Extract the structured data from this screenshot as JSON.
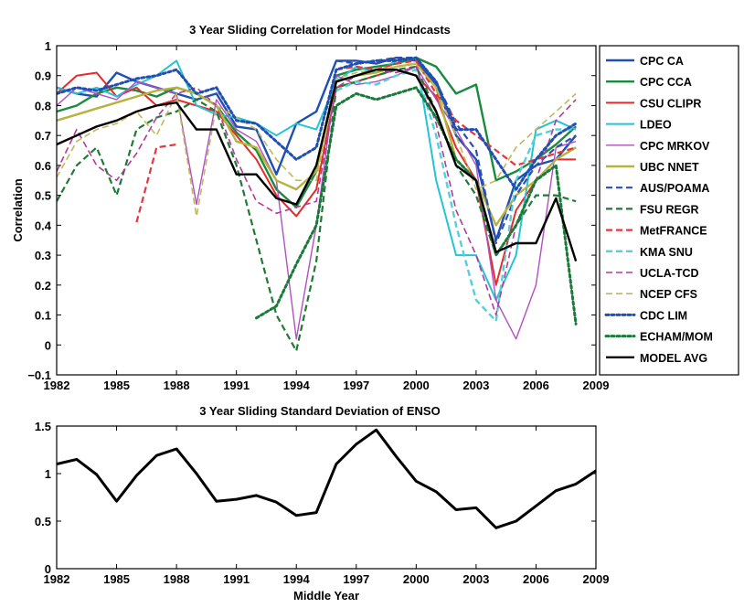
{
  "chart_data": [
    {
      "type": "line",
      "title": "3 Year Sliding Correlation for Model Hindcasts",
      "xlabel": "",
      "ylabel": "Correlation",
      "xlim": [
        1982,
        2009
      ],
      "ylim": [
        -0.1,
        1
      ],
      "xticks": [
        1982,
        1985,
        1988,
        1991,
        1994,
        1997,
        2000,
        2003,
        2006,
        2009
      ],
      "xtick_labels": [
        "1982",
        "1985",
        "1988",
        "1991",
        "1994",
        "1997",
        "2000",
        "2003",
        "2006",
        "2009"
      ],
      "yticks": [
        -0.1,
        0,
        0.1,
        0.2,
        0.3,
        0.4,
        0.5,
        0.6,
        0.7,
        0.8,
        0.9,
        1
      ],
      "ytick_labels": [
        "−0.1",
        "0",
        "0.1",
        "0.2",
        "0.3",
        "0.4",
        "0.5",
        "0.6",
        "0.7",
        "0.8",
        "0.9",
        "1"
      ],
      "grid": false,
      "legend_position": "outside-right",
      "x": [
        1982,
        1983,
        1984,
        1985,
        1986,
        1987,
        1988,
        1989,
        1990,
        1991,
        1992,
        1993,
        1994,
        1995,
        1996,
        1997,
        1998,
        1999,
        2000,
        2001,
        2002,
        2003,
        2004,
        2005,
        2006,
        2007,
        2008
      ],
      "series": [
        {
          "name": "CPC CA",
          "color": "#1f4fb4",
          "dash": "solid",
          "width": 2.4,
          "values": [
            0.86,
            0.84,
            0.83,
            0.91,
            0.88,
            0.86,
            0.84,
            0.82,
            0.84,
            0.73,
            0.72,
            0.57,
            0.74,
            0.78,
            0.95,
            0.95,
            0.94,
            0.96,
            0.95,
            0.87,
            0.7,
            0.62,
            0.35,
            0.55,
            0.6,
            0.62,
            0.7
          ]
        },
        {
          "name": "CPC CCA",
          "color": "#1a8a3e",
          "dash": "solid",
          "width": 2.4,
          "values": [
            0.78,
            0.8,
            0.84,
            0.86,
            0.85,
            0.83,
            0.86,
            0.84,
            0.8,
            0.71,
            0.65,
            0.52,
            0.46,
            0.58,
            0.9,
            0.92,
            0.93,
            0.94,
            0.96,
            0.93,
            0.84,
            0.87,
            0.55,
            0.58,
            0.62,
            0.67,
            0.73
          ]
        },
        {
          "name": "CSU CLIPR",
          "color": "#e52b2b",
          "dash": "solid",
          "width": 2.0,
          "values": [
            0.84,
            0.9,
            0.91,
            0.83,
            0.86,
            0.8,
            0.82,
            0.8,
            0.78,
            0.7,
            0.62,
            0.5,
            0.43,
            0.52,
            0.86,
            0.88,
            0.9,
            0.92,
            0.9,
            0.83,
            0.66,
            0.55,
            0.2,
            0.45,
            0.55,
            0.62,
            0.62
          ]
        },
        {
          "name": "LDEO",
          "color": "#25c3d6",
          "dash": "solid",
          "width": 2.0,
          "values": [
            0.86,
            0.84,
            0.86,
            0.83,
            0.87,
            0.9,
            0.95,
            0.8,
            0.77,
            0.76,
            0.74,
            0.7,
            0.74,
            0.72,
            0.88,
            0.93,
            0.91,
            0.95,
            0.96,
            0.55,
            0.3,
            0.3,
            0.15,
            0.3,
            0.72,
            0.75,
            0.72
          ]
        },
        {
          "name": "CPC MRKOV",
          "color": "#b24fc2",
          "dash": "solid",
          "width": 1.4,
          "values": [
            0.8,
            0.86,
            0.84,
            0.82,
            0.88,
            0.86,
            0.84,
            0.47,
            0.82,
            0.72,
            0.68,
            0.55,
            0.02,
            0.4,
            0.9,
            0.87,
            0.88,
            0.9,
            0.93,
            0.82,
            0.72,
            0.6,
            0.15,
            0.02,
            0.2,
            0.66,
            0.68
          ]
        },
        {
          "name": "UBC NNET",
          "color": "#b5b33d",
          "dash": "solid",
          "width": 2.4,
          "values": [
            0.75,
            0.77,
            0.79,
            0.81,
            0.83,
            0.85,
            0.86,
            0.84,
            0.8,
            0.68,
            0.66,
            0.55,
            0.52,
            0.58,
            0.88,
            0.9,
            0.91,
            0.93,
            0.94,
            0.86,
            0.62,
            0.55,
            0.4,
            0.5,
            0.55,
            0.62,
            0.66
          ]
        },
        {
          "name": "AUS/POAMA",
          "color": "#2d4fb4",
          "dash": "dashed",
          "width": 2.2,
          "values": [
            null,
            null,
            null,
            null,
            null,
            null,
            null,
            null,
            null,
            null,
            null,
            null,
            null,
            null,
            0.95,
            0.94,
            0.95,
            0.96,
            0.96,
            0.88,
            0.74,
            0.65,
            0.34,
            0.5,
            0.6,
            0.66,
            0.7
          ]
        },
        {
          "name": "FSU REGR",
          "color": "#1f7a36",
          "dash": "dashed",
          "width": 2.2,
          "values": [
            0.48,
            0.6,
            0.66,
            0.5,
            0.72,
            0.76,
            0.78,
            0.82,
            0.78,
            0.6,
            0.35,
            0.1,
            -0.02,
            0.28,
            0.86,
            0.88,
            0.9,
            0.92,
            0.93,
            0.78,
            0.6,
            0.5,
            0.3,
            0.4,
            0.5,
            0.5,
            0.48
          ]
        },
        {
          "name": "MetFRANCE",
          "color": "#e8353a",
          "dash": "dashed",
          "width": 2.2,
          "values": [
            null,
            null,
            null,
            null,
            0.41,
            0.66,
            0.67,
            null,
            null,
            null,
            null,
            null,
            null,
            null,
            0.92,
            0.93,
            0.92,
            0.94,
            0.95,
            0.84,
            0.75,
            0.7,
            0.65,
            0.6,
            0.62,
            0.64,
            0.66
          ]
        },
        {
          "name": "KMA SNU",
          "color": "#52d1dc",
          "dash": "dashed",
          "width": 2.4,
          "values": [
            null,
            null,
            null,
            null,
            null,
            null,
            null,
            null,
            null,
            null,
            null,
            null,
            null,
            null,
            0.85,
            0.88,
            0.87,
            0.9,
            0.92,
            0.7,
            0.4,
            0.15,
            0.08,
            0.55,
            0.7,
            0.72,
            0.72
          ]
        },
        {
          "name": "UCLA-TCD",
          "color": "#b23a9a",
          "dash": "dashed",
          "width": 1.6,
          "values": [
            0.58,
            0.72,
            0.6,
            0.55,
            0.64,
            0.76,
            0.84,
            0.86,
            0.8,
            0.62,
            0.48,
            0.44,
            0.46,
            0.48,
            0.86,
            0.9,
            0.92,
            0.91,
            0.93,
            0.74,
            0.45,
            0.3,
            0.1,
            0.4,
            0.55,
            0.75,
            0.82
          ]
        },
        {
          "name": "NCEP CFS",
          "color": "#c2b85a",
          "dash": "dashed",
          "width": 1.6,
          "values": [
            0.56,
            0.68,
            0.72,
            0.74,
            0.78,
            0.7,
            0.84,
            0.43,
            0.8,
            0.76,
            0.72,
            0.62,
            0.55,
            0.55,
            0.89,
            0.91,
            0.92,
            0.93,
            0.94,
            0.86,
            0.7,
            0.52,
            0.55,
            0.66,
            0.72,
            0.78,
            0.84
          ]
        },
        {
          "name": "CDC LIM",
          "color": "#1f4fb4",
          "dash": "dotted",
          "width": 3.0,
          "values": [
            0.84,
            0.86,
            0.85,
            0.87,
            0.89,
            0.9,
            0.92,
            0.84,
            0.86,
            0.75,
            0.74,
            0.68,
            0.62,
            0.66,
            0.92,
            0.94,
            0.95,
            0.95,
            0.96,
            0.88,
            0.72,
            0.72,
            0.62,
            0.52,
            0.62,
            0.7,
            0.74
          ]
        },
        {
          "name": "ECHAM/MOM",
          "color": "#1a7a3a",
          "dash": "dotted",
          "width": 3.0,
          "values": [
            null,
            null,
            null,
            null,
            null,
            null,
            null,
            null,
            null,
            null,
            0.09,
            0.13,
            0.27,
            0.4,
            0.8,
            0.84,
            0.82,
            0.84,
            0.86,
            0.76,
            0.62,
            0.55,
            0.3,
            0.4,
            0.55,
            0.6,
            0.07
          ]
        },
        {
          "name": "MODEL AVG",
          "color": "#000000",
          "dash": "solid",
          "width": 2.4,
          "values": [
            0.67,
            0.7,
            0.73,
            0.75,
            0.78,
            0.8,
            0.81,
            0.72,
            0.72,
            0.57,
            0.57,
            0.49,
            0.47,
            0.6,
            0.88,
            0.9,
            0.92,
            0.92,
            0.9,
            0.78,
            0.6,
            0.55,
            0.31,
            0.34,
            0.34,
            0.49,
            0.28
          ]
        }
      ]
    },
    {
      "type": "line",
      "title": "3 Year Sliding Standard Deviation of ENSO",
      "xlabel": "Middle Year",
      "ylabel": "",
      "xlim": [
        1982,
        2009
      ],
      "ylim": [
        0,
        1.5
      ],
      "xticks": [
        1982,
        1985,
        1988,
        1991,
        1994,
        1997,
        2000,
        2003,
        2006,
        2009
      ],
      "xtick_labels": [
        "1982",
        "1985",
        "1988",
        "1991",
        "1994",
        "1997",
        "2000",
        "2003",
        "2006",
        "2009"
      ],
      "yticks": [
        0,
        0.5,
        1,
        1.5
      ],
      "ytick_labels": [
        "0",
        "0.5",
        "1",
        "1.5"
      ],
      "grid": false,
      "x": [
        1982,
        1983,
        1984,
        1985,
        1986,
        1987,
        1988,
        1989,
        1990,
        1991,
        1992,
        1993,
        1994,
        1995,
        1996,
        1997,
        1998,
        1999,
        2000,
        2001,
        2002,
        2003,
        2004,
        2005,
        2006,
        2007,
        2008,
        2009
      ],
      "series": [
        {
          "name": "",
          "color": "#000000",
          "dash": "solid",
          "width": 3.0,
          "values": [
            1.1,
            1.15,
            0.99,
            0.71,
            0.98,
            1.19,
            1.26,
            1.0,
            0.71,
            0.73,
            0.77,
            0.7,
            0.56,
            0.59,
            1.1,
            1.31,
            1.46,
            1.18,
            0.92,
            0.81,
            0.62,
            0.64,
            0.43,
            0.5,
            0.66,
            0.82,
            0.89,
            1.03
          ]
        }
      ]
    }
  ]
}
